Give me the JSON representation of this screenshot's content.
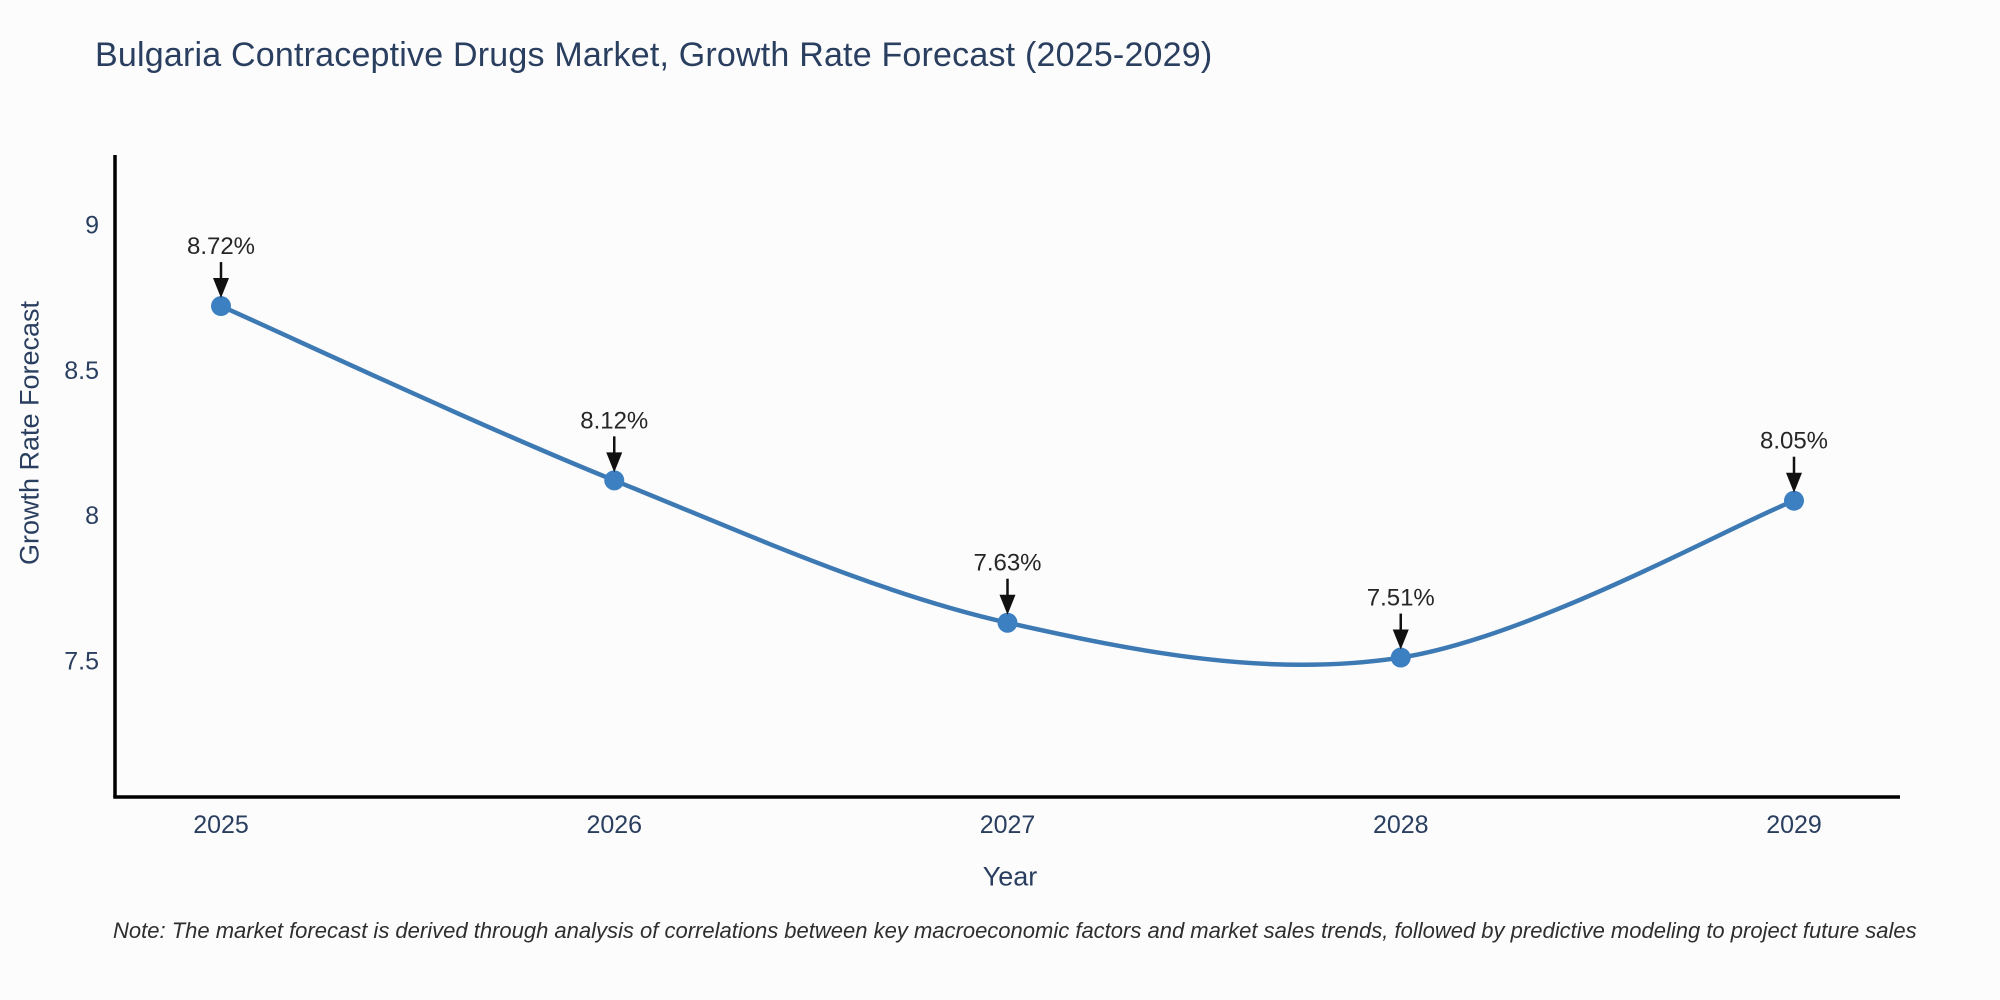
{
  "title": "Bulgaria Contraceptive Drugs Market, Growth Rate Forecast (2025-2029)",
  "note": "Note: The market forecast is derived through analysis of correlations between key macroeconomic factors and market sales trends, followed by predictive modeling to project future sales",
  "chart_data": {
    "type": "line",
    "title": "Bulgaria Contraceptive Drugs Market, Growth Rate Forecast (2025-2029)",
    "xlabel": "Year",
    "ylabel": "Growth Rate Forecast",
    "categories": [
      "2025",
      "2026",
      "2027",
      "2028",
      "2029"
    ],
    "values": [
      8.72,
      8.12,
      7.63,
      7.51,
      8.05
    ],
    "point_labels": [
      "8.72%",
      "8.12%",
      "7.63%",
      "7.51%",
      "8.05%"
    ],
    "ytick_values": [
      7.5,
      8,
      8.5,
      9
    ],
    "ytick_labels": [
      "7.5",
      "8",
      "8.5",
      "9"
    ],
    "ylim": [
      7.03,
      9.24
    ],
    "line_shape": "spline",
    "grid": false,
    "legend": "none",
    "markers": true,
    "annotations": "value labels with down arrows above each point",
    "colors": {
      "line": "#3d79b3",
      "marker": "#3c80c2",
      "axis": "#000000",
      "tick_text": "#2a3f5f",
      "title_text": "#2a3f5f",
      "annotation_text": "#262626",
      "arrow": "#111111",
      "background": "#fcfcfd"
    }
  }
}
